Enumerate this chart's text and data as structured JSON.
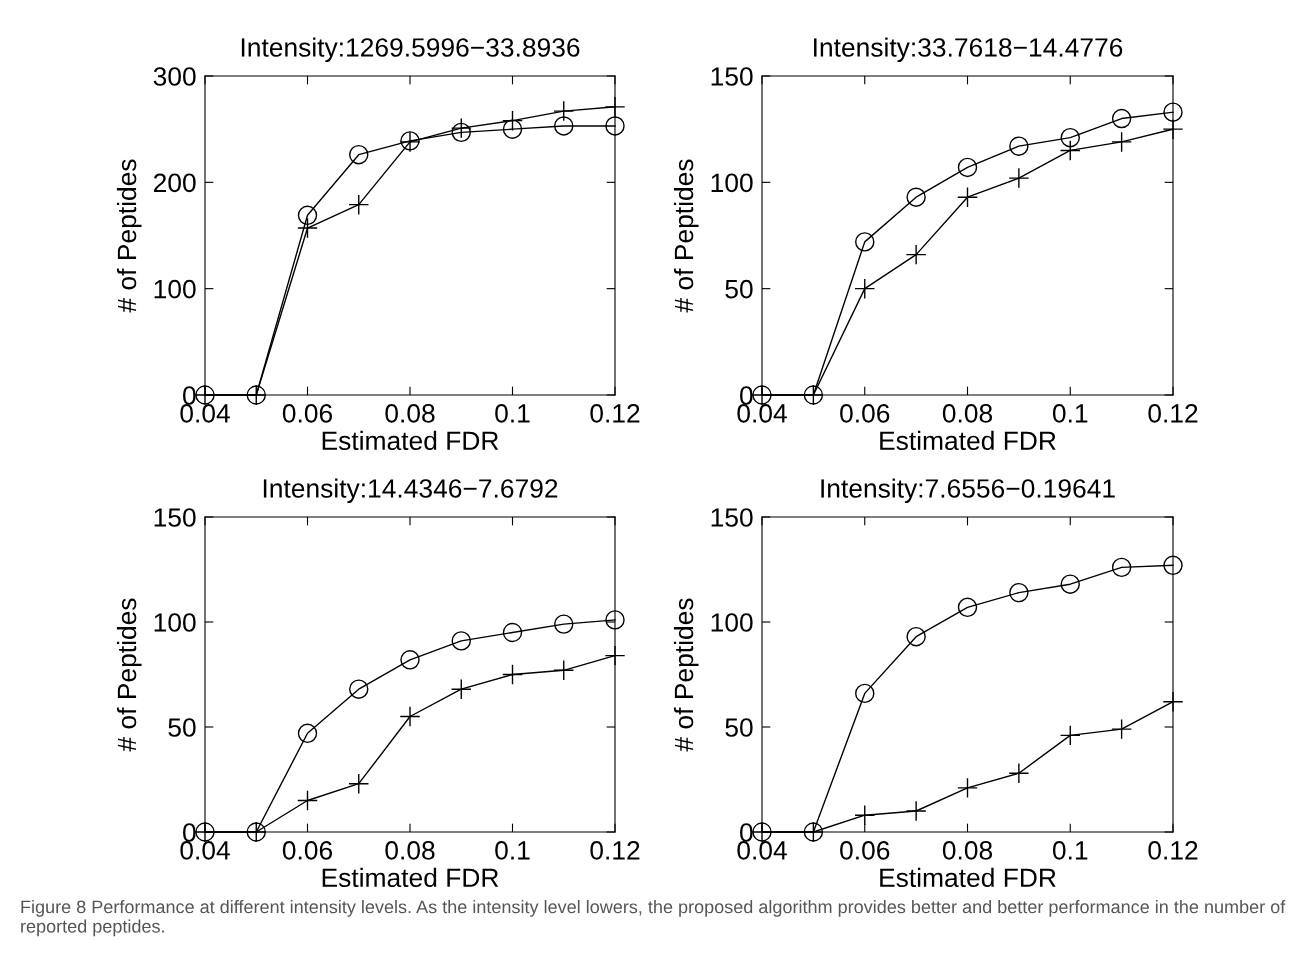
{
  "chart_data": [
    {
      "type": "line",
      "title": "Intensity:1269.5996−33.8936",
      "xlabel": "Estimated FDR",
      "ylabel": "# of Peptides",
      "x": [
        0.04,
        0.05,
        0.06,
        0.07,
        0.08,
        0.09,
        0.1,
        0.11,
        0.12
      ],
      "xlim": [
        0.04,
        0.12
      ],
      "xticks": [
        0.04,
        0.06,
        0.08,
        0.1,
        0.12
      ],
      "ylim": [
        0,
        300
      ],
      "yticks": [
        0,
        100,
        200,
        300
      ],
      "series": [
        {
          "color": "#000000",
          "marker": "circle",
          "values": [
            0,
            0,
            169,
            226,
            239,
            247,
            250,
            253,
            253
          ]
        },
        {
          "color": "#000000",
          "marker": "cross",
          "values": [
            0,
            0,
            157,
            179,
            238,
            251,
            258,
            267,
            271
          ]
        }
      ],
      "annotations": [
        "Figure 8 Performance at different intensity levels. As the intensity level lowers, the proposed algorithm provides better and better performance in the number of reported peptides."
      ]
    },
    {
      "type": "line",
      "title": "Intensity:33.7618−14.4776",
      "xlabel": "Estimated FDR",
      "ylabel": "# of Peptides",
      "x": [
        0.04,
        0.05,
        0.06,
        0.07,
        0.08,
        0.09,
        0.1,
        0.11,
        0.12
      ],
      "xlim": [
        0.04,
        0.12
      ],
      "xticks": [
        0.04,
        0.06,
        0.08,
        0.1,
        0.12
      ],
      "ylim": [
        0,
        150
      ],
      "yticks": [
        0,
        50,
        100,
        150
      ],
      "series": [
        {
          "color": "#000000",
          "marker": "circle",
          "values": [
            0,
            0,
            72,
            93,
            107,
            117,
            121,
            130,
            133
          ]
        },
        {
          "color": "#000000",
          "marker": "cross",
          "values": [
            0,
            0,
            50,
            66,
            93,
            102,
            115,
            119,
            125
          ]
        }
      ]
    },
    {
      "type": "line",
      "title": "Intensity:14.4346−7.6792",
      "xlabel": "Estimated FDR",
      "ylabel": "# of Peptides",
      "x": [
        0.04,
        0.05,
        0.06,
        0.07,
        0.08,
        0.09,
        0.1,
        0.11,
        0.12
      ],
      "xlim": [
        0.04,
        0.12
      ],
      "xticks": [
        0.04,
        0.06,
        0.08,
        0.1,
        0.12
      ],
      "ylim": [
        0,
        150
      ],
      "yticks": [
        0,
        50,
        100,
        150
      ],
      "series": [
        {
          "color": "#000000",
          "marker": "circle",
          "values": [
            0,
            0,
            47,
            68,
            82,
            91,
            95,
            99,
            101
          ]
        },
        {
          "color": "#000000",
          "marker": "cross",
          "values": [
            0,
            0,
            15,
            23,
            55,
            68,
            75,
            77,
            84
          ]
        }
      ]
    },
    {
      "type": "line",
      "title": "Intensity:7.6556−0.19641",
      "xlabel": "Estimated FDR",
      "ylabel": "# of Peptides",
      "x": [
        0.04,
        0.05,
        0.06,
        0.07,
        0.08,
        0.09,
        0.1,
        0.11,
        0.12
      ],
      "xlim": [
        0.04,
        0.12
      ],
      "xticks": [
        0.04,
        0.06,
        0.08,
        0.1,
        0.12
      ],
      "ylim": [
        0,
        150
      ],
      "yticks": [
        0,
        50,
        100,
        150
      ],
      "series": [
        {
          "color": "#000000",
          "marker": "circle",
          "values": [
            0,
            0,
            66,
            93,
            107,
            114,
            118,
            126,
            127
          ]
        },
        {
          "color": "#000000",
          "marker": "cross",
          "values": [
            0,
            0,
            8,
            10,
            21,
            28,
            46,
            49,
            62
          ]
        }
      ]
    }
  ]
}
